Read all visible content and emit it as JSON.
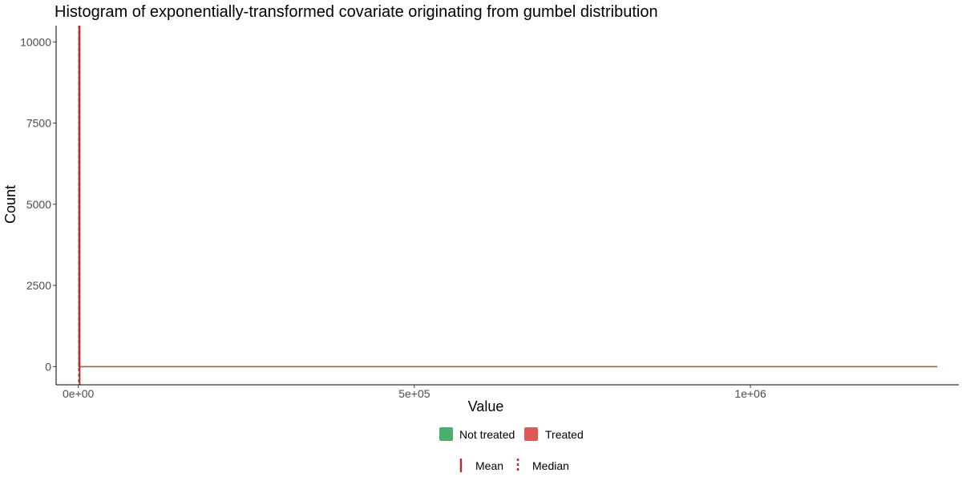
{
  "chart_data": {
    "type": "histogram",
    "title": "Histogram of exponentially-transformed covariate originating from gumbel distribution",
    "xlabel": "Value",
    "ylabel": "Count",
    "xlim": [
      -33000,
      1310000
    ],
    "ylim": [
      -560,
      10500
    ],
    "x_ticks": [
      0,
      500000,
      1000000
    ],
    "x_tick_labels": [
      "0e+00",
      "5e+05",
      "1e+06"
    ],
    "y_ticks": [
      0,
      2500,
      5000,
      7500,
      10000
    ],
    "y_tick_labels": [
      "0",
      "2500",
      "5000",
      "7500",
      "10000"
    ],
    "series": [
      {
        "name": "Not treated",
        "color": "#2e9e56",
        "bins": [
          {
            "x0": 0,
            "x1": 2000,
            "count": 10200
          }
        ],
        "tail_to": 1278000
      },
      {
        "name": "Treated",
        "color": "#d93b3b",
        "bins": [
          {
            "x0": 0,
            "x1": 2000,
            "count": 10500
          }
        ],
        "tail_to": 1278000
      }
    ],
    "reference_lines": [
      {
        "label": "Mean",
        "style": "solid",
        "color": "#a8322e",
        "x": 2000
      },
      {
        "label": "Median",
        "style": "dashed",
        "color": "#a8322e",
        "x": 1000
      }
    ],
    "legend": {
      "fill_entries": [
        "Not treated",
        "Treated"
      ],
      "line_entries": [
        "Mean",
        "Median"
      ],
      "placement": "bottom"
    },
    "grid": false
  }
}
